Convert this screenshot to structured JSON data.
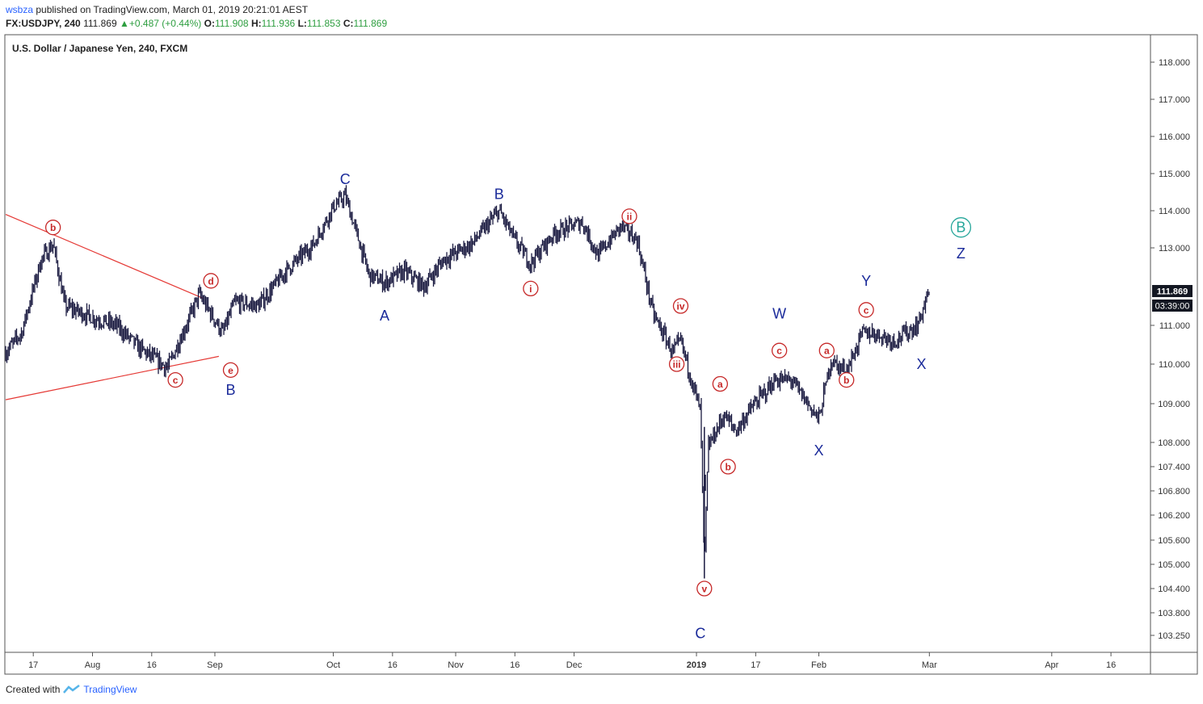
{
  "header": {
    "user": "wsbza",
    "published": "published on TradingView.com, March 01, 2019 20:21:01 AEST",
    "symbol": "FX:USDJPY, 240",
    "last": "111.869",
    "change": "+0.487 (+0.44%)",
    "open_label": "O:",
    "open": "111.908",
    "high_label": "H:",
    "high": "111.936",
    "low_label": "L:",
    "low": "111.853",
    "close_label": "C:",
    "close": "111.869"
  },
  "footer": {
    "created_with": "Created with",
    "brand": "TradingView"
  },
  "colors": {
    "candle": "#1a1a40",
    "trendline": "#e53935",
    "wave_blue": "#1a2a9a",
    "wave_red": "#c62828",
    "wave_teal": "#26a69a",
    "price_badge": "#131722"
  },
  "chart_data": {
    "type": "line",
    "title": "U.S. Dollar / Japanese Yen, 240, FXCM",
    "y_ticks": [
      "118.000",
      "117.000",
      "116.000",
      "115.000",
      "114.000",
      "113.000",
      "111.000",
      "110.000",
      "109.000",
      "108.000",
      "107.400",
      "106.800",
      "106.200",
      "105.600",
      "105.000",
      "104.400",
      "103.800",
      "103.250"
    ],
    "x_ticks": [
      "17",
      "Aug",
      "16",
      "Sep",
      "Oct",
      "16",
      "Nov",
      "16",
      "Dec",
      "2019",
      "17",
      "Feb",
      "Mar",
      "Apr",
      "16"
    ],
    "current_price": "111.869",
    "countdown": "03:39:00",
    "x": [
      "2018-07-10",
      "2018-07-14",
      "2018-07-19",
      "2018-07-22",
      "2018-07-25",
      "2018-08-01",
      "2018-08-07",
      "2018-08-13",
      "2018-08-20",
      "2018-08-26",
      "2018-08-28",
      "2018-09-03",
      "2018-09-06",
      "2018-09-12",
      "2018-09-19",
      "2018-09-26",
      "2018-10-01",
      "2018-10-04",
      "2018-10-10",
      "2018-10-14",
      "2018-10-19",
      "2018-10-24",
      "2018-10-29",
      "2018-11-05",
      "2018-11-12",
      "2018-11-16",
      "2018-11-20",
      "2018-11-26",
      "2018-12-03",
      "2018-12-07",
      "2018-12-13",
      "2018-12-17",
      "2018-12-21",
      "2018-12-26",
      "2018-12-28",
      "2019-01-02",
      "2019-01-03",
      "2019-01-04",
      "2019-01-08",
      "2019-01-11",
      "2019-01-15",
      "2019-01-21",
      "2019-01-25",
      "2019-02-01",
      "2019-02-04",
      "2019-02-08",
      "2019-02-12",
      "2019-02-15",
      "2019-02-20",
      "2019-02-26",
      "2019-03-01"
    ],
    "series": [
      {
        "values": [
          110.3,
          110.8,
          112.7,
          113.1,
          111.5,
          111.2,
          111.0,
          110.4,
          109.9,
          111.3,
          111.8,
          110.8,
          111.6,
          111.5,
          112.4,
          113.1,
          114.1,
          114.4,
          112.3,
          112.1,
          112.4,
          112.0,
          112.7,
          113.1,
          114.0,
          113.2,
          112.6,
          113.4,
          113.7,
          112.8,
          113.6,
          113.2,
          111.3,
          110.3,
          110.6,
          108.8,
          104.9,
          107.9,
          108.7,
          108.3,
          108.9,
          109.6,
          109.6,
          108.6,
          110.1,
          109.8,
          110.8,
          110.8,
          110.6,
          111.0,
          111.9
        ]
      }
    ],
    "trendlines": [
      {
        "from": [
          "2018-07-10",
          113.9
        ],
        "to": [
          "2018-08-29",
          111.7
        ]
      },
      {
        "from": [
          "2018-07-10",
          109.1
        ],
        "to": [
          "2018-09-02",
          110.2
        ]
      }
    ],
    "wave_labels": [
      {
        "text": "b",
        "style": "circle-red",
        "x": "2018-07-22",
        "y": 113.55
      },
      {
        "text": "c",
        "style": "circle-red",
        "x": "2018-08-22",
        "y": 109.6
      },
      {
        "text": "d",
        "style": "circle-red",
        "x": "2018-08-31",
        "y": 112.15
      },
      {
        "text": "e",
        "style": "circle-red",
        "x": "2018-09-05",
        "y": 109.85
      },
      {
        "text": "B",
        "style": "blue",
        "x": "2018-09-05",
        "y": 109.35
      },
      {
        "text": "C",
        "style": "blue",
        "x": "2018-10-04",
        "y": 114.85
      },
      {
        "text": "A",
        "style": "blue",
        "x": "2018-10-14",
        "y": 111.25
      },
      {
        "text": "B",
        "style": "blue",
        "x": "2018-11-12",
        "y": 114.45
      },
      {
        "text": "i",
        "style": "circle-red",
        "x": "2018-11-20",
        "y": 111.95
      },
      {
        "text": "ii",
        "style": "circle-red",
        "x": "2018-12-15",
        "y": 113.85
      },
      {
        "text": "iv",
        "style": "circle-red",
        "x": "2018-12-28",
        "y": 111.5
      },
      {
        "text": "iii",
        "style": "circle-red",
        "x": "2018-12-27",
        "y": 110.0
      },
      {
        "text": "v",
        "style": "circle-red",
        "x": "2019-01-03",
        "y": 104.4
      },
      {
        "text": "C",
        "style": "blue",
        "x": "2019-01-02",
        "y": 103.3
      },
      {
        "text": "a",
        "style": "circle-red",
        "x": "2019-01-07",
        "y": 109.5
      },
      {
        "text": "b",
        "style": "circle-red",
        "x": "2019-01-09",
        "y": 107.4
      },
      {
        "text": "c",
        "style": "circle-red",
        "x": "2019-01-22",
        "y": 110.35
      },
      {
        "text": "W",
        "style": "blue",
        "x": "2019-01-22",
        "y": 111.3
      },
      {
        "text": "X",
        "style": "blue",
        "x": "2019-02-01",
        "y": 107.8
      },
      {
        "text": "a",
        "style": "circle-red",
        "x": "2019-02-03",
        "y": 110.35
      },
      {
        "text": "b",
        "style": "circle-red",
        "x": "2019-02-08",
        "y": 109.6
      },
      {
        "text": "c",
        "style": "circle-red",
        "x": "2019-02-13",
        "y": 111.4
      },
      {
        "text": "Y",
        "style": "blue",
        "x": "2019-02-13",
        "y": 112.15
      },
      {
        "text": "X",
        "style": "blue",
        "x": "2019-02-27",
        "y": 110.0
      },
      {
        "text": "B",
        "style": "circle-teal",
        "x": "2019-03-09",
        "y": 113.55
      },
      {
        "text": "Z",
        "style": "blue",
        "x": "2019-03-09",
        "y": 112.85
      }
    ]
  }
}
